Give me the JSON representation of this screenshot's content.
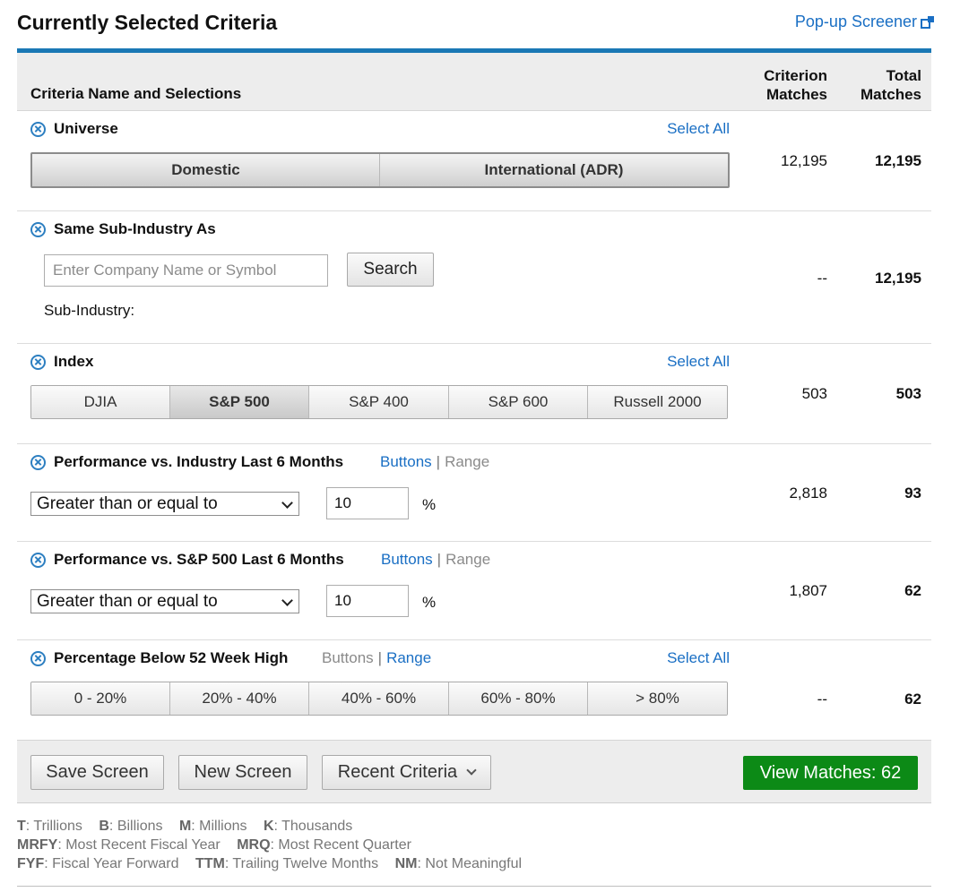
{
  "page": {
    "title": "Currently Selected Criteria",
    "popup_link": "Pop-up Screener"
  },
  "header": {
    "name_col": "Criteria Name and Selections",
    "criterion_col_1": "Criterion",
    "criterion_col_2": "Matches",
    "total_col_1": "Total",
    "total_col_2": "Matches"
  },
  "universe": {
    "title": "Universe",
    "select_all": "Select All",
    "options": [
      "Domestic",
      "International (ADR)"
    ],
    "criterion_matches": "12,195",
    "total_matches": "12,195"
  },
  "sub_industry": {
    "title": "Same Sub-Industry As",
    "placeholder": "Enter Company Name or Symbol",
    "search_label": "Search",
    "label": "Sub-Industry:",
    "criterion_matches": "--",
    "total_matches": "12,195"
  },
  "index": {
    "title": "Index",
    "select_all": "Select All",
    "options": [
      "DJIA",
      "S&P 500",
      "S&P 400",
      "S&P 600",
      "Russell 2000"
    ],
    "selected": "S&P 500",
    "criterion_matches": "503",
    "total_matches": "503"
  },
  "perf_industry": {
    "title": "Performance vs. Industry Last 6 Months",
    "buttons_label": "Buttons",
    "range_label": "Range",
    "operator": "Greater than or equal to",
    "value": "10",
    "unit": "%",
    "criterion_matches": "2,818",
    "total_matches": "93"
  },
  "perf_sp500": {
    "title": "Performance vs. S&P 500 Last 6 Months",
    "buttons_label": "Buttons",
    "range_label": "Range",
    "operator": "Greater than or equal to",
    "value": "10",
    "unit": "%",
    "criterion_matches": "1,807",
    "total_matches": "62"
  },
  "pct_below_high": {
    "title": "Percentage Below 52 Week High",
    "buttons_label": "Buttons",
    "range_label": "Range",
    "select_all": "Select All",
    "options": [
      "0 - 20%",
      "20% - 40%",
      "40% - 60%",
      "60% - 80%",
      "> 80%"
    ],
    "criterion_matches": "--",
    "total_matches": "62"
  },
  "actions": {
    "save": "Save Screen",
    "new": "New Screen",
    "recent": "Recent Criteria",
    "view": "View Matches: 62"
  },
  "legend": {
    "line1": [
      [
        "T",
        ": Trillions"
      ],
      [
        "B",
        ": Billions"
      ],
      [
        "M",
        ": Millions"
      ],
      [
        "K",
        ": Thousands"
      ]
    ],
    "line2": [
      [
        "MRFY",
        ": Most Recent Fiscal Year"
      ],
      [
        "MRQ",
        ": Most Recent Quarter"
      ]
    ],
    "line3": [
      [
        "FYF",
        ": Fiscal Year Forward"
      ],
      [
        "TTM",
        ": Trailing Twelve Months"
      ],
      [
        "NM",
        ": Not Meaningful"
      ]
    ]
  },
  "colors": {
    "accent": "#1a78b5",
    "link": "#1a6fc4",
    "view_button": "#0c8a16"
  }
}
